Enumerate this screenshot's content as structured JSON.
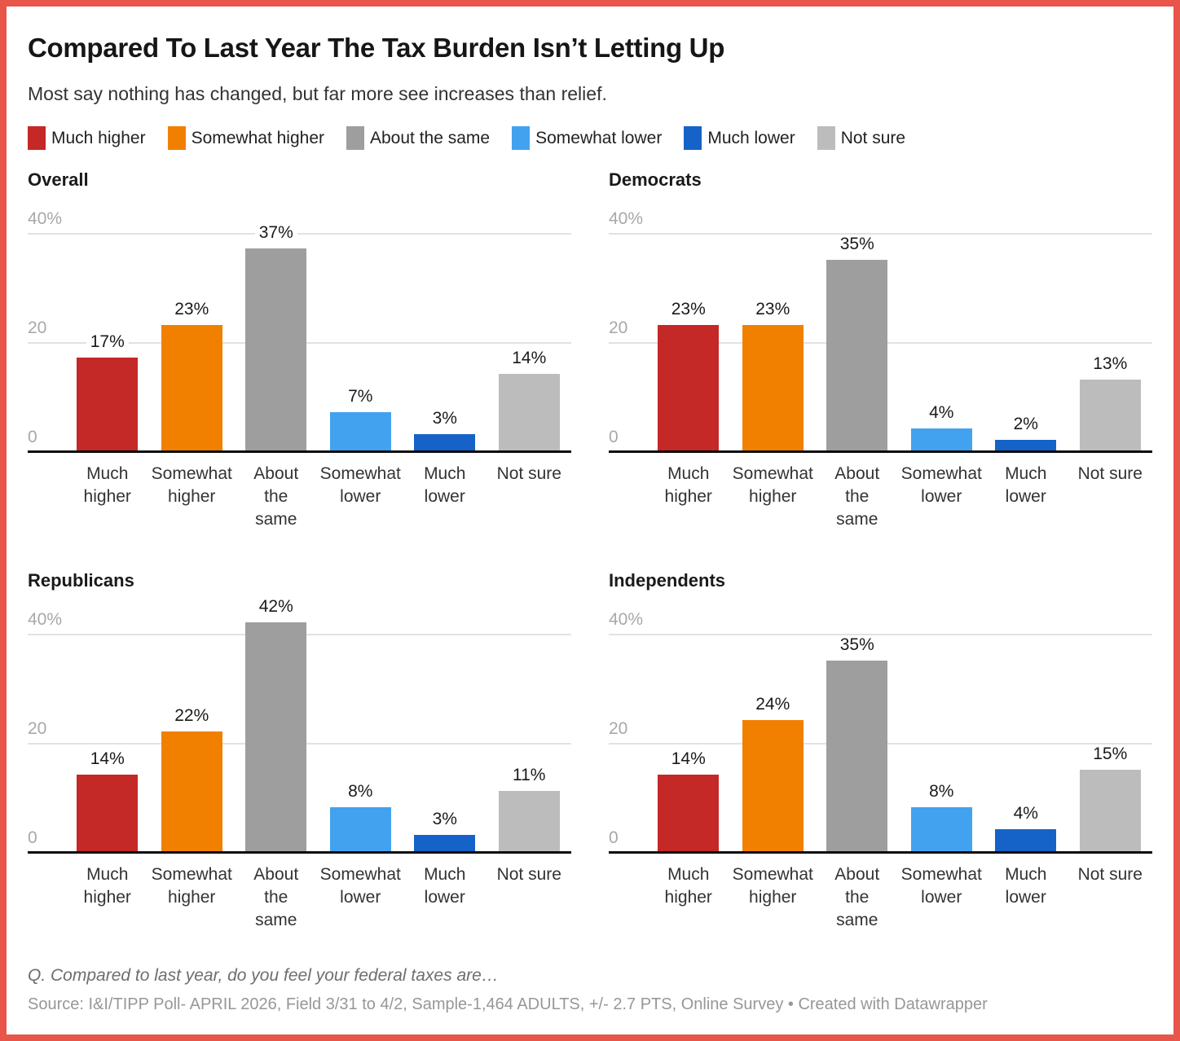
{
  "header": {
    "title": "Compared To Last Year The Tax Burden Isn’t Letting Up",
    "subtitle": "Most say nothing has changed, but far more see increases than relief."
  },
  "legend": [
    {
      "label": "Much higher",
      "color": "#c42827"
    },
    {
      "label": "Somewhat higher",
      "color": "#f28000"
    },
    {
      "label": "About the same",
      "color": "#9e9e9e"
    },
    {
      "label": "Somewhat lower",
      "color": "#42a2f0"
    },
    {
      "label": "Much lower",
      "color": "#1562c8"
    },
    {
      "label": "Not sure",
      "color": "#bcbcbc"
    }
  ],
  "axis": {
    "ticks": [
      {
        "value": 0,
        "label": "0"
      },
      {
        "value": 20,
        "label": "20"
      },
      {
        "value": 40,
        "label": "40%"
      }
    ],
    "max_percent_scale": 40,
    "pixels_per_percent": 6.7
  },
  "category_display": [
    "Much\nhigher",
    "Somewhat\nhigher",
    "About\nthe\nsame",
    "Somewhat\nlower",
    "Much\nlower",
    "Not sure"
  ],
  "chart_data": [
    {
      "type": "bar",
      "title": "Overall",
      "categories": [
        "Much higher",
        "Somewhat higher",
        "About the same",
        "Somewhat lower",
        "Much lower",
        "Not sure"
      ],
      "values": [
        17,
        23,
        37,
        7,
        3,
        14
      ],
      "unit": "%",
      "ylim": [
        0,
        45
      ],
      "yticks": [
        0,
        20,
        40
      ],
      "grid": true,
      "legend_position": "top"
    },
    {
      "type": "bar",
      "title": "Democrats",
      "categories": [
        "Much higher",
        "Somewhat higher",
        "About the same",
        "Somewhat lower",
        "Much lower",
        "Not sure"
      ],
      "values": [
        23,
        23,
        35,
        4,
        2,
        13
      ],
      "unit": "%",
      "ylim": [
        0,
        45
      ],
      "yticks": [
        0,
        20,
        40
      ],
      "grid": true,
      "legend_position": "top"
    },
    {
      "type": "bar",
      "title": "Republicans",
      "categories": [
        "Much higher",
        "Somewhat higher",
        "About the same",
        "Somewhat lower",
        "Much lower",
        "Not sure"
      ],
      "values": [
        14,
        22,
        42,
        8,
        3,
        11
      ],
      "unit": "%",
      "ylim": [
        0,
        45
      ],
      "yticks": [
        0,
        20,
        40
      ],
      "grid": true,
      "legend_position": "top"
    },
    {
      "type": "bar",
      "title": "Independents",
      "categories": [
        "Much higher",
        "Somewhat higher",
        "About the same",
        "Somewhat lower",
        "Much lower",
        "Not sure"
      ],
      "values": [
        14,
        24,
        35,
        8,
        4,
        15
      ],
      "unit": "%",
      "ylim": [
        0,
        45
      ],
      "yticks": [
        0,
        20,
        40
      ],
      "grid": true,
      "legend_position": "top"
    }
  ],
  "footer": {
    "question": "Q. Compared to last year, do you feel your federal taxes are…",
    "source": "Source: I&I/TIPP Poll- APRIL 2026, Field 3/31 to 4/2, Sample-1,464 ADULTS, +/- 2.7 PTS, Online Survey",
    "separator": " • ",
    "attribution": "Created with Datawrapper"
  },
  "colors": {
    "border": "#e8554a",
    "gridline": "#e2e2e2",
    "axis_line": "#0a0a0a",
    "tick_label": "#a8a8a8",
    "value_label": "#1a1a1a",
    "category_label": "#333333"
  }
}
